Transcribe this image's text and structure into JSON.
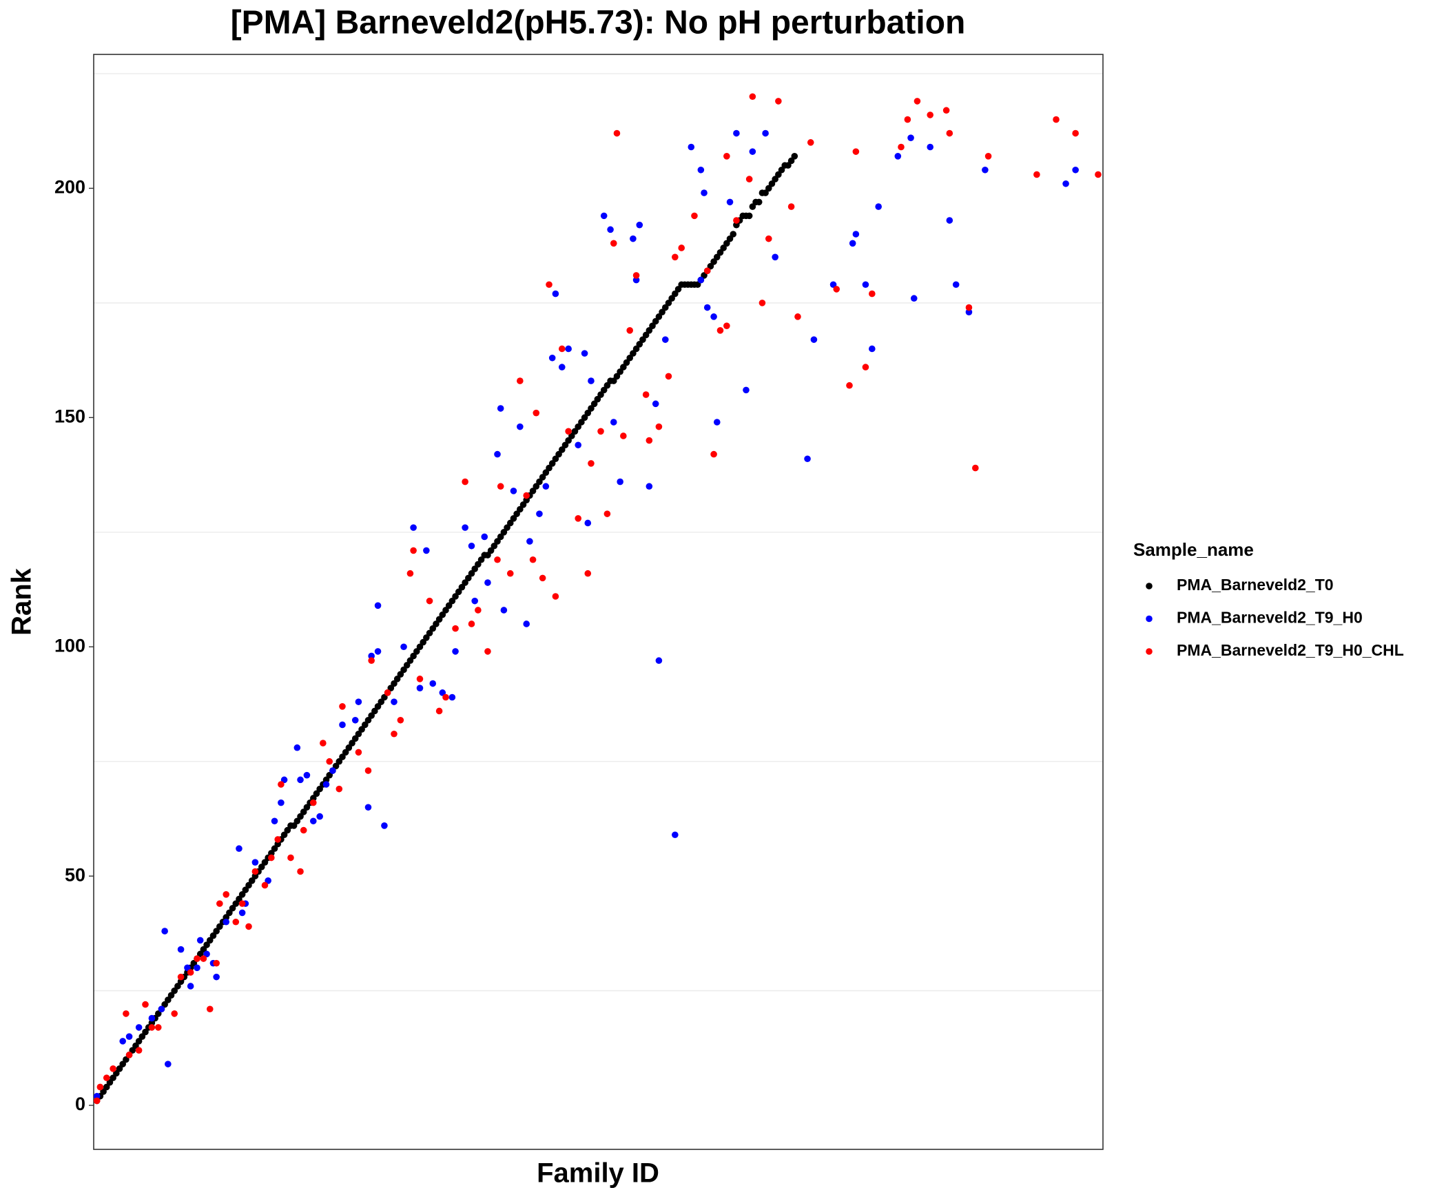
{
  "chart_data": {
    "type": "scatter",
    "title": "[PMA] Barneveld2(pH5.73): No pH perturbation",
    "x_label": "Family ID",
    "y_label": "Rank",
    "legend_title": "Sample_name",
    "legend_position": "right",
    "xlim": [
      0,
      312.5
    ],
    "ylim": [
      -9.6,
      229.2
    ],
    "yticks": [
      0,
      50,
      100,
      150,
      200
    ],
    "y_minor_grid": [
      25,
      75,
      125,
      175,
      225
    ],
    "series": [
      {
        "name": "PMA_Barneveld2_T0",
        "color": "#000000",
        "x": [
          1,
          2,
          3,
          4,
          5,
          6,
          7,
          8,
          9,
          10,
          11,
          12,
          13,
          14,
          15,
          16,
          17,
          18,
          19,
          20,
          21,
          22,
          23,
          24,
          25,
          26,
          27,
          28,
          29,
          30,
          31,
          32,
          33,
          34,
          35,
          36,
          37,
          38,
          39,
          40,
          41,
          42,
          43,
          44,
          45,
          46,
          47,
          48,
          49,
          50,
          51,
          52,
          53,
          54,
          55,
          56,
          57,
          58,
          59,
          60,
          61,
          62,
          63,
          64,
          65,
          66,
          67,
          68,
          69,
          70,
          71,
          72,
          73,
          74,
          75,
          76,
          77,
          78,
          79,
          80,
          81,
          82,
          83,
          84,
          85,
          86,
          87,
          88,
          89,
          90,
          91,
          92,
          93,
          94,
          95,
          96,
          97,
          98,
          99,
          100,
          101,
          102,
          103,
          104,
          105,
          106,
          107,
          108,
          109,
          110,
          111,
          112,
          113,
          114,
          115,
          116,
          117,
          118,
          119,
          120,
          121,
          122,
          123,
          124,
          125,
          126,
          127,
          128,
          129,
          130,
          131,
          132,
          133,
          134,
          135,
          136,
          137,
          138,
          139,
          140,
          141,
          142,
          143,
          144,
          145,
          146,
          147,
          148,
          149,
          150,
          151,
          152,
          153,
          154,
          155,
          156,
          157,
          158,
          159,
          160,
          161,
          162,
          163,
          164,
          165,
          166,
          167,
          168,
          169,
          170,
          171,
          172,
          173,
          174,
          175,
          176,
          177,
          178,
          179,
          180,
          181,
          182,
          183,
          184,
          185,
          186,
          187,
          188,
          189,
          190,
          191,
          192,
          193,
          194,
          195,
          196,
          197,
          198,
          199,
          200,
          201,
          202,
          203,
          204,
          205,
          206,
          207,
          208,
          209,
          210,
          211,
          212,
          213,
          214,
          215,
          216,
          217
        ],
        "values": [
          1,
          2,
          3,
          4,
          5,
          6,
          7,
          8,
          9,
          10,
          11,
          12,
          13,
          14,
          15,
          16,
          17,
          18,
          19,
          20,
          21,
          22,
          23,
          24,
          25,
          26,
          27,
          28,
          29,
          30,
          31,
          32,
          33,
          34,
          35,
          36,
          37,
          38,
          39,
          40,
          41,
          42,
          43,
          44,
          45,
          46,
          47,
          48,
          49,
          50,
          51,
          52,
          53,
          54,
          55,
          56,
          57,
          58,
          59,
          60,
          61,
          61,
          62,
          63,
          64,
          65,
          66,
          67,
          68,
          69,
          70,
          71,
          72,
          73,
          74,
          75,
          76,
          77,
          78,
          79,
          80,
          81,
          82,
          83,
          84,
          85,
          86,
          87,
          88,
          89,
          90,
          91,
          92,
          93,
          94,
          95,
          96,
          97,
          98,
          99,
          100,
          101,
          102,
          103,
          104,
          105,
          106,
          107,
          108,
          109,
          110,
          111,
          112,
          113,
          114,
          115,
          116,
          117,
          118,
          119,
          120,
          120,
          121,
          122,
          123,
          124,
          125,
          126,
          127,
          128,
          129,
          130,
          131,
          132,
          133,
          134,
          135,
          136,
          137,
          138,
          139,
          140,
          141,
          142,
          143,
          144,
          145,
          146,
          147,
          148,
          149,
          150,
          151,
          152,
          153,
          154,
          155,
          156,
          157,
          158,
          158,
          159,
          160,
          161,
          162,
          163,
          164,
          165,
          166,
          167,
          168,
          169,
          170,
          171,
          172,
          173,
          174,
          175,
          176,
          177,
          178,
          179,
          179,
          179,
          179,
          179,
          179,
          180,
          181,
          182,
          183,
          184,
          185,
          186,
          187,
          188,
          189,
          190,
          192,
          193,
          194,
          194,
          194,
          196,
          197,
          197,
          199,
          199,
          200,
          201,
          202,
          203,
          204,
          205,
          205,
          206,
          207
        ]
      },
      {
        "name": "PMA_Barneveld2_T9_H0",
        "color": "#0000ff",
        "x": [
          1,
          9,
          11,
          14,
          18,
          21,
          22,
          23,
          27,
          29,
          30,
          32,
          33,
          35,
          37,
          38,
          41,
          45,
          46,
          47,
          50,
          54,
          56,
          58,
          59,
          63,
          64,
          66,
          68,
          70,
          72,
          74,
          77,
          81,
          82,
          85,
          86,
          88,
          88,
          90,
          93,
          96,
          99,
          101,
          103,
          105,
          108,
          111,
          112,
          115,
          117,
          118,
          121,
          122,
          125,
          126,
          127,
          130,
          132,
          134,
          135,
          138,
          140,
          142,
          143,
          145,
          147,
          150,
          152,
          153,
          154,
          158,
          160,
          161,
          163,
          167,
          168,
          169,
          172,
          174,
          175,
          177,
          180,
          185,
          188,
          188,
          189,
          190,
          192,
          193,
          197,
          199,
          202,
          204,
          208,
          211,
          221,
          223,
          229,
          235,
          236,
          239,
          241,
          243,
          249,
          253,
          254,
          259,
          265,
          267,
          271,
          276,
          301,
          304
        ],
        "values": [
          2,
          14,
          15,
          17,
          19,
          21,
          38,
          9,
          34,
          30,
          26,
          30,
          36,
          33,
          31,
          28,
          40,
          56,
          42,
          44,
          53,
          49,
          62,
          66,
          71,
          78,
          71,
          72,
          62,
          63,
          70,
          73,
          83,
          84,
          88,
          65,
          98,
          99,
          109,
          61,
          88,
          100,
          126,
          91,
          121,
          92,
          90,
          89,
          99,
          126,
          122,
          110,
          124,
          114,
          142,
          152,
          108,
          134,
          148,
          105,
          123,
          129,
          135,
          163,
          177,
          161,
          165,
          144,
          164,
          127,
          158,
          194,
          191,
          149,
          136,
          189,
          180,
          192,
          135,
          153,
          97,
          167,
          59,
          209,
          180,
          204,
          199,
          174,
          172,
          149,
          197,
          212,
          156,
          208,
          212,
          185,
          141,
          167,
          179,
          188,
          190,
          179,
          165,
          196,
          207,
          211,
          176,
          209,
          193,
          179,
          173,
          204,
          201,
          204
        ]
      },
      {
        "name": "PMA_Barneveld2_T9_H0_CHL",
        "color": "#ff0000",
        "x": [
          1,
          2,
          4,
          6,
          10,
          11,
          14,
          16,
          18,
          20,
          25,
          27,
          30,
          32,
          34,
          36,
          38,
          39,
          41,
          44,
          46,
          48,
          50,
          53,
          55,
          57,
          58,
          61,
          64,
          65,
          68,
          71,
          73,
          76,
          77,
          82,
          85,
          86,
          91,
          93,
          95,
          98,
          99,
          101,
          104,
          107,
          109,
          112,
          115,
          117,
          119,
          122,
          125,
          126,
          129,
          132,
          134,
          136,
          137,
          139,
          141,
          143,
          145,
          147,
          150,
          153,
          154,
          157,
          159,
          161,
          162,
          164,
          166,
          168,
          171,
          172,
          175,
          178,
          180,
          182,
          186,
          190,
          192,
          194,
          196,
          196,
          199,
          203,
          204,
          207,
          209,
          212,
          216,
          218,
          222,
          230,
          234,
          236,
          239,
          241,
          250,
          252,
          255,
          259,
          264,
          265,
          271,
          273,
          277,
          292,
          298,
          304,
          311
        ],
        "values": [
          1,
          4,
          6,
          8,
          20,
          11,
          12,
          22,
          17,
          17,
          20,
          28,
          29,
          32,
          32,
          21,
          31,
          44,
          46,
          40,
          44,
          39,
          51,
          48,
          54,
          58,
          70,
          54,
          51,
          60,
          66,
          79,
          75,
          69,
          87,
          77,
          73,
          97,
          90,
          81,
          84,
          116,
          121,
          93,
          110,
          86,
          89,
          104,
          136,
          105,
          108,
          99,
          119,
          135,
          116,
          158,
          133,
          119,
          151,
          115,
          179,
          111,
          165,
          147,
          128,
          116,
          140,
          147,
          129,
          188,
          212,
          146,
          169,
          181,
          155,
          145,
          148,
          159,
          185,
          187,
          194,
          182,
          142,
          169,
          170,
          207,
          193,
          202,
          220,
          175,
          189,
          219,
          196,
          172,
          210,
          178,
          157,
          208,
          161,
          177,
          209,
          215,
          219,
          216,
          217,
          212,
          174,
          139,
          207,
          203,
          215,
          212,
          203
        ]
      }
    ]
  }
}
